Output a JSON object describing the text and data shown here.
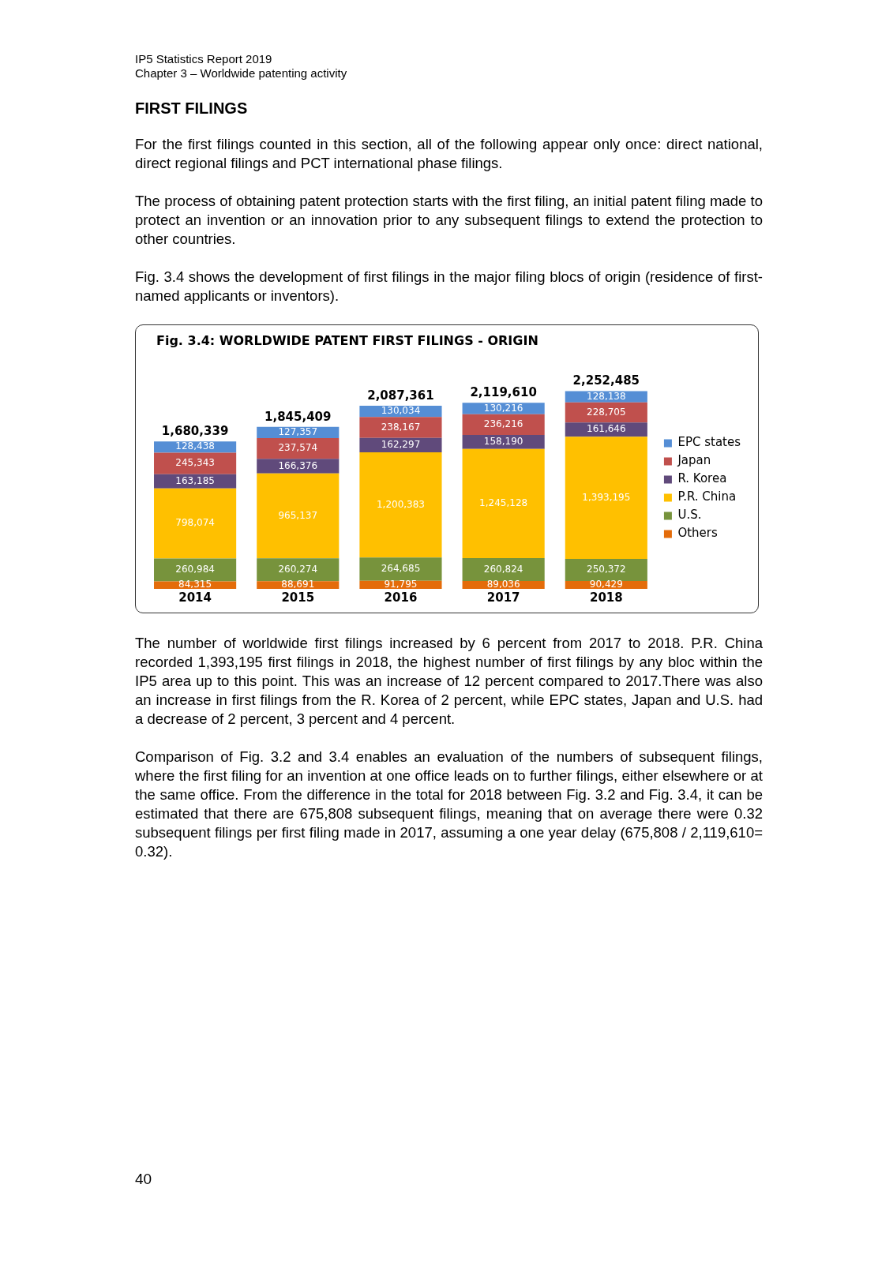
{
  "chart_data": {
    "type": "bar",
    "stacked": true,
    "title": "Fig. 3.4: WORLDWIDE PATENT FIRST FILINGS - ORIGIN",
    "categories": [
      "2014",
      "2015",
      "2016",
      "2017",
      "2018"
    ],
    "series": [
      {
        "name": "Others",
        "color": "#e46c0a",
        "values": [
          84315,
          88691,
          91795,
          89036,
          90429
        ],
        "value_labels": [
          "84,315",
          "88,691",
          "91,795",
          "89,036",
          "90,429"
        ]
      },
      {
        "name": "U.S.",
        "color": "#77933c",
        "values": [
          260984,
          260274,
          264685,
          260824,
          250372
        ],
        "value_labels": [
          "260,984",
          "260,274",
          "264,685",
          "260,824",
          "250,372"
        ]
      },
      {
        "name": "P.R. China",
        "color": "#ffc000",
        "values": [
          798074,
          965137,
          1200383,
          1245128,
          1393195
        ],
        "value_labels": [
          "798,074",
          "965,137",
          "1,200,383",
          "1,245,128",
          "1,393,195"
        ]
      },
      {
        "name": "R. Korea",
        "color": "#604a7b",
        "values": [
          163185,
          166376,
          162297,
          158190,
          161646
        ],
        "value_labels": [
          "163,185",
          "166,376",
          "162,297",
          "158,190",
          "161,646"
        ]
      },
      {
        "name": "Japan",
        "color": "#c0504d",
        "values": [
          245343,
          237574,
          238167,
          236216,
          228705
        ],
        "value_labels": [
          "245,343",
          "237,574",
          "238,167",
          "236,216",
          "228,705"
        ]
      },
      {
        "name": "EPC states",
        "color": "#558ed5",
        "values": [
          128438,
          127357,
          130034,
          130216,
          128138
        ],
        "value_labels": [
          "128,438",
          "127,357",
          "130,034",
          "130,216",
          "128,138"
        ]
      }
    ],
    "totals": [
      "1,680,339",
      "1,845,409",
      "2,087,361",
      "2,119,610",
      "2,252,485"
    ],
    "legend": "right",
    "grid": false,
    "tick_labels": "x",
    "annotations": [
      "IP5 Statistics Report 2019",
      "Chapter 3 – Worldwide patenting activity",
      "FIRST FILINGS",
      "For the first filings counted in this section, all of the following appear only once: direct national, direct regional filings and PCT international phase filings.",
      "The process of obtaining patent protection starts with the first filing, an initial patent filing made to protect an invention or an innovation prior to any subsequent filings to extend the protection to other countries.",
      "Fig. 3.4 shows the development of first filings in the major filing blocs of origin (residence of first-named applicants or inventors).",
      "The number of worldwide first filings increased by 6 percent from 2017 to 2018. P.R. China recorded 1,393,195 first filings in 2018, the highest number of first filings by any bloc within the IP5 area up to this point. This was an increase of 12 percent compared to 2017.There was also an increase in first filings from the R. Korea of 2 percent, while EPC states, Japan and U.S. had a decrease of 2 percent, 3 percent and 4 percent.",
      "Comparison of Fig. 3.2 and 3.4 enables an evaluation of the numbers of subsequent filings, where the first filing for an invention at one office leads on to further filings, either elsewhere or at the same office. From the difference in the total for 2018 between Fig. 3.2 and Fig. 3.4, it can be estimated that there are  675,808 subsequent filings, meaning that on average there were 0.32 subsequent filings per first filing made in 2017, assuming a one year delay (675,808 / 2,119,610= 0.32).",
      "40"
    ]
  }
}
